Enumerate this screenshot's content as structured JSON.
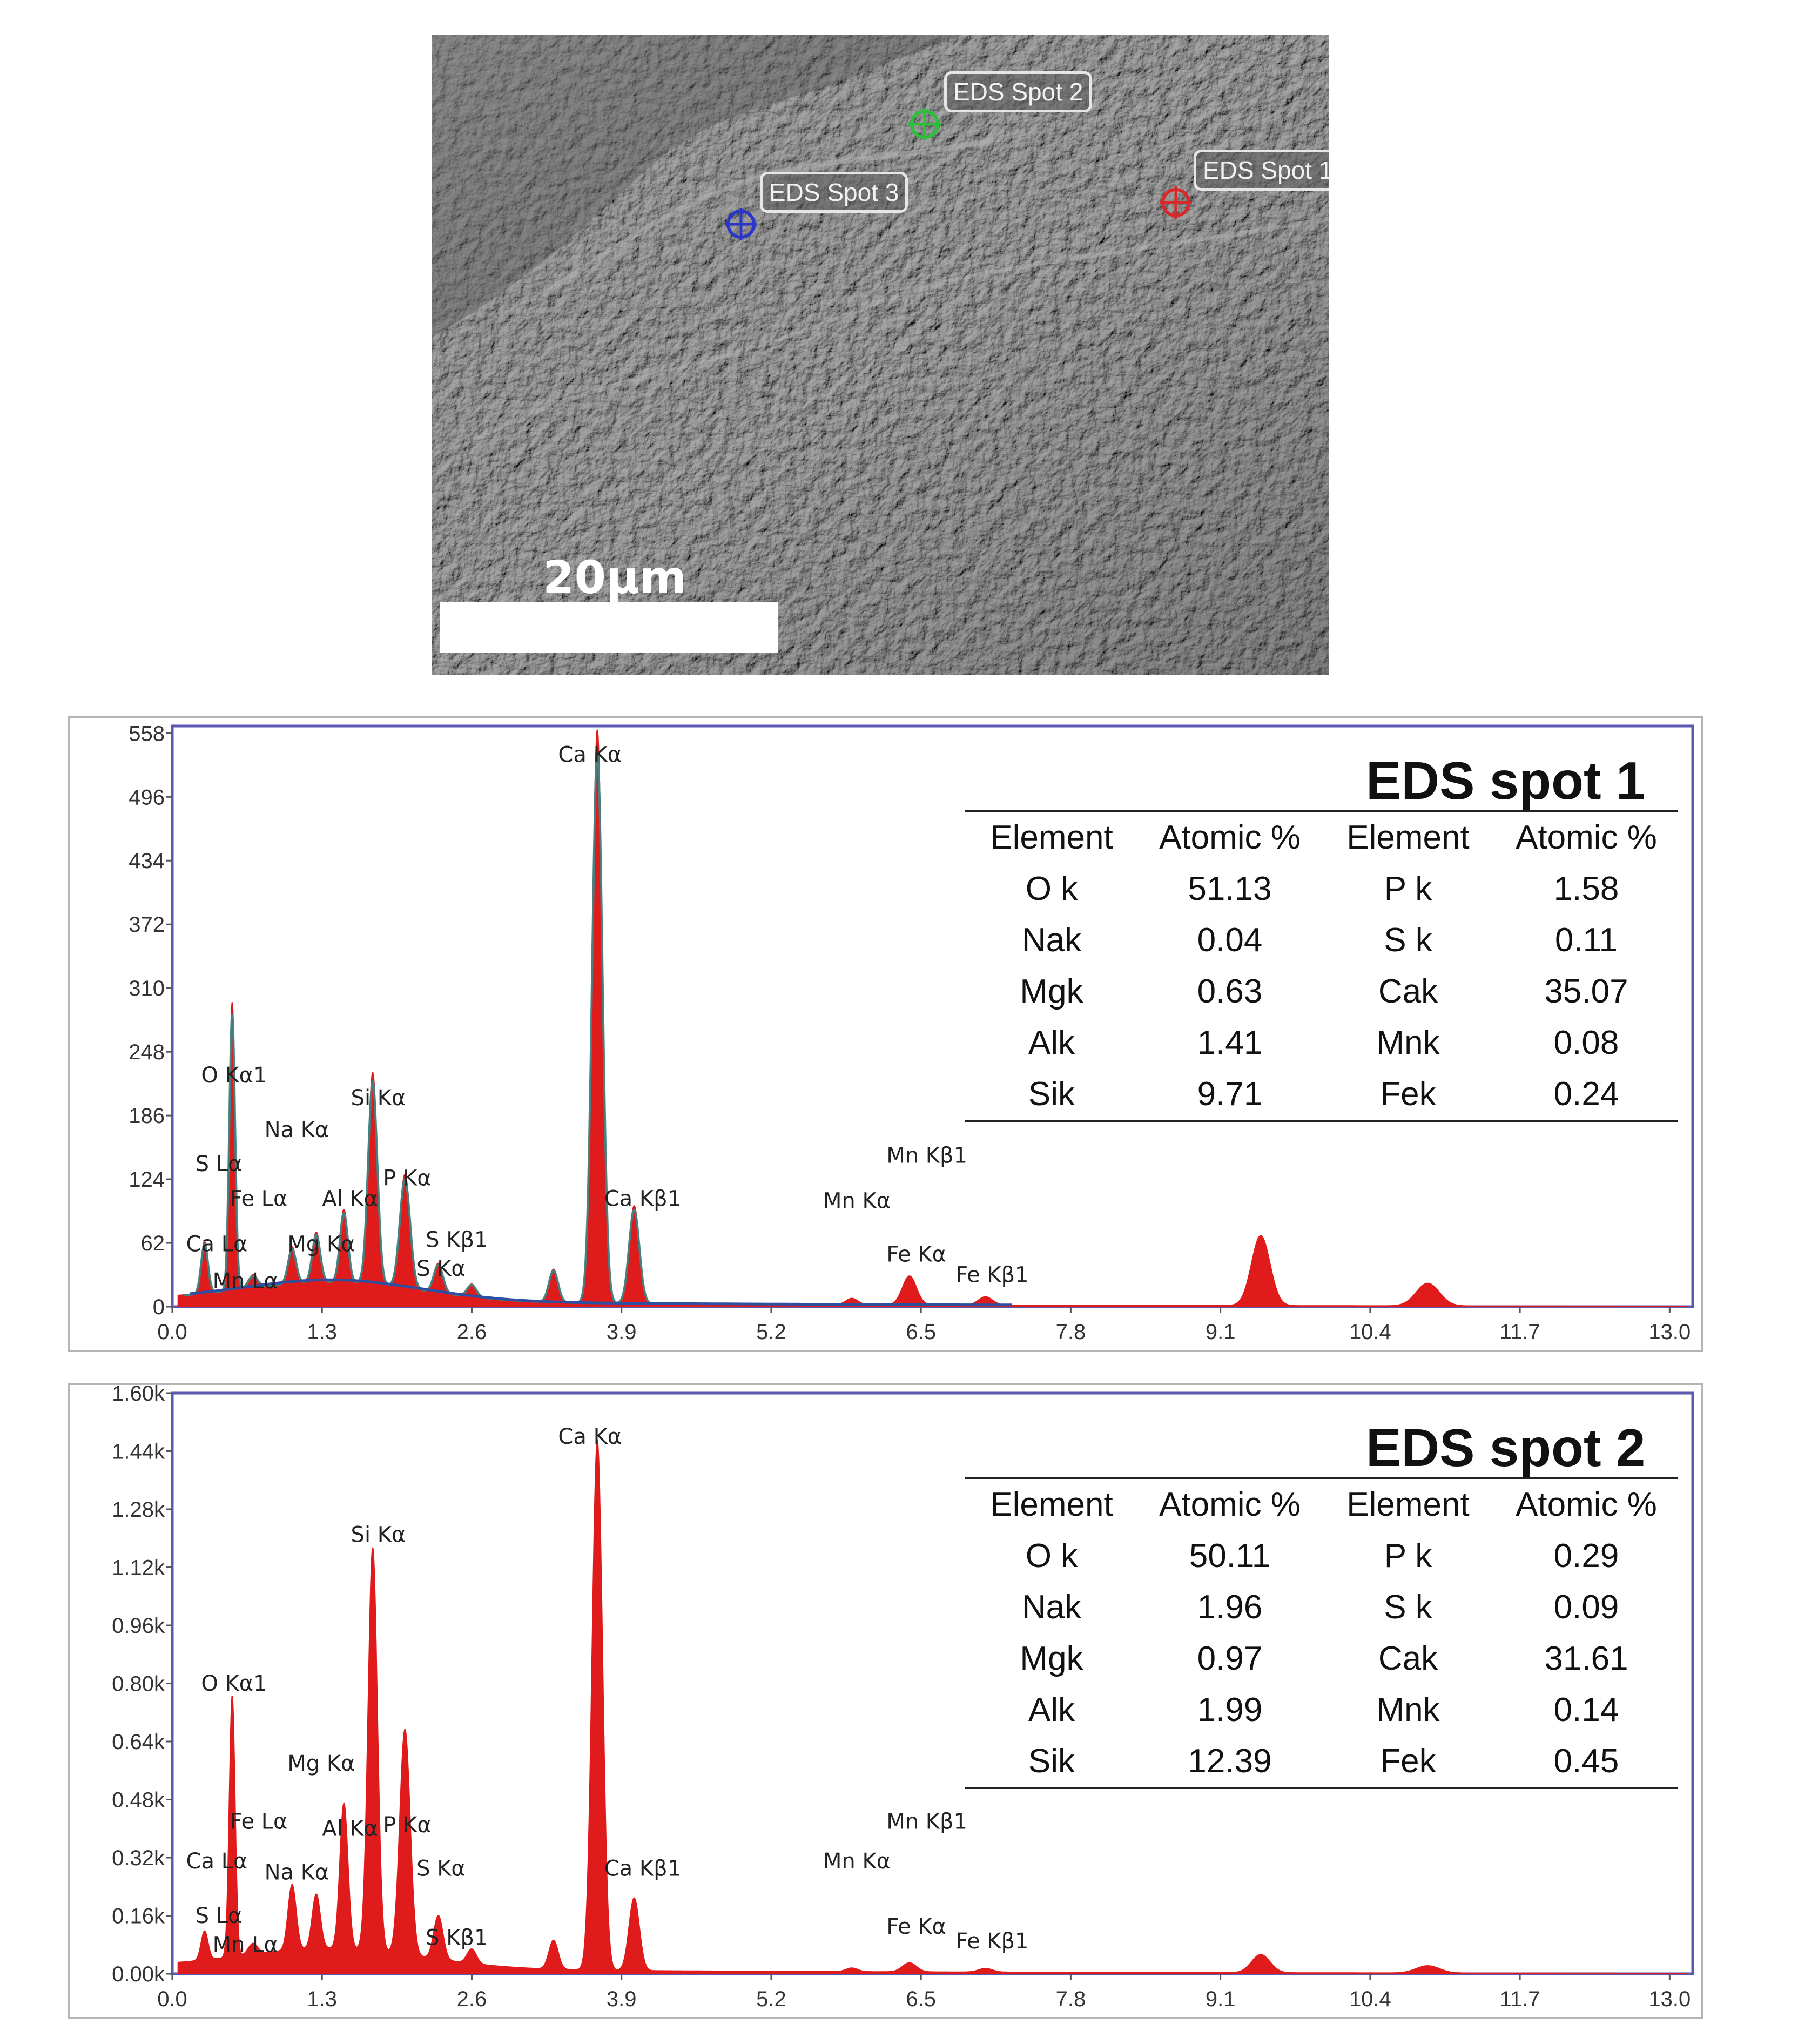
{
  "sem": {
    "scale_label": "20μm",
    "spots": [
      {
        "label": "EDS Spot 1",
        "color": "#d8282a"
      },
      {
        "label": "EDS Spot 2",
        "color": "#2bbf3b"
      },
      {
        "label": "EDS Spot 3",
        "color": "#2a36c8"
      }
    ]
  },
  "chart_data": [
    {
      "type": "area",
      "title": "EDS spot 1",
      "x_ticks": [
        "0.0",
        "1.3",
        "2.6",
        "3.9",
        "5.2",
        "6.5",
        "7.8",
        "9.1",
        "10.4",
        "11.7",
        "13.0"
      ],
      "y_ticks": [
        "0",
        "62",
        "124",
        "186",
        "248",
        "310",
        "372",
        "434",
        "496",
        "558"
      ],
      "xlim": [
        0,
        13.2
      ],
      "ylim": [
        0,
        565
      ],
      "spectrum_color": "#e01b1b",
      "fit_color": "#3a8a8a",
      "background_color": "#2f4ea0",
      "peaks": [
        {
          "x": 0.28,
          "y": 50,
          "w": 0.03
        },
        {
          "x": 0.52,
          "y": 280,
          "w": 0.025
        },
        {
          "x": 0.7,
          "y": 12,
          "w": 0.04
        },
        {
          "x": 1.04,
          "y": 35,
          "w": 0.035
        },
        {
          "x": 1.25,
          "y": 48,
          "w": 0.035
        },
        {
          "x": 1.49,
          "y": 70,
          "w": 0.035
        },
        {
          "x": 1.74,
          "y": 205,
          "w": 0.04
        },
        {
          "x": 2.02,
          "y": 110,
          "w": 0.045
        },
        {
          "x": 2.31,
          "y": 28,
          "w": 0.04
        },
        {
          "x": 2.6,
          "y": 12,
          "w": 0.04
        },
        {
          "x": 3.31,
          "y": 32,
          "w": 0.04
        },
        {
          "x": 3.69,
          "y": 558,
          "w": 0.045
        },
        {
          "x": 4.01,
          "y": 95,
          "w": 0.045
        },
        {
          "x": 5.9,
          "y": 6,
          "w": 0.05
        },
        {
          "x": 6.4,
          "y": 28,
          "w": 0.06
        },
        {
          "x": 7.06,
          "y": 8,
          "w": 0.06
        },
        {
          "x": 9.45,
          "y": 68,
          "w": 0.08
        },
        {
          "x": 10.9,
          "y": 22,
          "w": 0.1
        }
      ],
      "peak_labels": [
        {
          "text": "Ca Kα",
          "x": 3.35,
          "y": 530
        },
        {
          "text": "O  Kα1",
          "x": 0.25,
          "y": 218
        },
        {
          "text": "Si Kα",
          "x": 1.55,
          "y": 196
        },
        {
          "text": "Na Kα",
          "x": 0.8,
          "y": 165
        },
        {
          "text": "S  Lα",
          "x": 0.2,
          "y": 132
        },
        {
          "text": "P  Kα",
          "x": 1.83,
          "y": 118
        },
        {
          "text": "Fe Lα",
          "x": 0.5,
          "y": 98
        },
        {
          "text": "Al Kα",
          "x": 1.3,
          "y": 98
        },
        {
          "text": "Ca Kβ1",
          "x": 3.75,
          "y": 98
        },
        {
          "text": "Mn Kβ1",
          "x": 6.2,
          "y": 140
        },
        {
          "text": "Mn Kα",
          "x": 5.65,
          "y": 96
        },
        {
          "text": "S  Kβ1",
          "x": 2.2,
          "y": 58
        },
        {
          "text": "Ca Lα",
          "x": 0.12,
          "y": 54
        },
        {
          "text": "Mg Kα",
          "x": 1.0,
          "y": 54
        },
        {
          "text": "S  Kα",
          "x": 2.12,
          "y": 30
        },
        {
          "text": "Mn Lα",
          "x": 0.35,
          "y": 18
        },
        {
          "text": "Fe Kα",
          "x": 6.2,
          "y": 44
        },
        {
          "text": "Fe Kβ1",
          "x": 6.8,
          "y": 24
        }
      ],
      "composition": {
        "header": [
          "Element",
          "Atomic %",
          "Element",
          "Atomic %"
        ],
        "rows": [
          [
            "O k",
            "51.13",
            "P k",
            "1.58"
          ],
          [
            "Nak",
            "0.04",
            "S k",
            "0.11"
          ],
          [
            "Mgk",
            "0.63",
            "Cak",
            "35.07"
          ],
          [
            "Alk",
            "1.41",
            "Mnk",
            "0.08"
          ],
          [
            "Sik",
            "9.71",
            "Fek",
            "0.24"
          ]
        ]
      }
    },
    {
      "type": "area",
      "title": "EDS spot 2",
      "x_ticks": [
        "0.0",
        "1.3",
        "2.6",
        "3.9",
        "5.2",
        "6.5",
        "7.8",
        "9.1",
        "10.4",
        "11.7",
        "13.0"
      ],
      "y_ticks": [
        "0.00k",
        "0.16k",
        "0.32k",
        "0.48k",
        "0.64k",
        "0.80k",
        "0.96k",
        "1.12k",
        "1.28k",
        "1.44k",
        "1.60k"
      ],
      "xlim": [
        0,
        13.2
      ],
      "ylim": [
        0,
        1.6
      ],
      "spectrum_color": "#e01b1b",
      "peaks": [
        {
          "x": 0.28,
          "y": 0.08,
          "w": 0.03
        },
        {
          "x": 0.52,
          "y": 0.72,
          "w": 0.025
        },
        {
          "x": 0.7,
          "y": 0.03,
          "w": 0.04
        },
        {
          "x": 1.04,
          "y": 0.18,
          "w": 0.035
        },
        {
          "x": 1.25,
          "y": 0.15,
          "w": 0.035
        },
        {
          "x": 1.49,
          "y": 0.4,
          "w": 0.035
        },
        {
          "x": 1.74,
          "y": 1.11,
          "w": 0.04
        },
        {
          "x": 2.02,
          "y": 0.62,
          "w": 0.045
        },
        {
          "x": 2.31,
          "y": 0.12,
          "w": 0.04
        },
        {
          "x": 2.6,
          "y": 0.04,
          "w": 0.04
        },
        {
          "x": 3.31,
          "y": 0.08,
          "w": 0.04
        },
        {
          "x": 3.69,
          "y": 1.46,
          "w": 0.045
        },
        {
          "x": 4.01,
          "y": 0.2,
          "w": 0.045
        },
        {
          "x": 5.9,
          "y": 0.01,
          "w": 0.05
        },
        {
          "x": 6.4,
          "y": 0.025,
          "w": 0.06
        },
        {
          "x": 7.06,
          "y": 0.01,
          "w": 0.06
        },
        {
          "x": 9.45,
          "y": 0.05,
          "w": 0.08
        },
        {
          "x": 10.9,
          "y": 0.02,
          "w": 0.1
        }
      ],
      "peak_labels": [
        {
          "text": "Ca Kα",
          "x": 3.35,
          "y": 1.46
        },
        {
          "text": "Si Kα",
          "x": 1.55,
          "y": 1.19
        },
        {
          "text": "O  Kα1",
          "x": 0.25,
          "y": 0.78
        },
        {
          "text": "Mg Kα",
          "x": 1.0,
          "y": 0.56
        },
        {
          "text": "Fe Lα",
          "x": 0.5,
          "y": 0.4
        },
        {
          "text": "Al Kα",
          "x": 1.3,
          "y": 0.38
        },
        {
          "text": "P  Kα",
          "x": 1.83,
          "y": 0.39
        },
        {
          "text": "Mn Kβ1",
          "x": 6.2,
          "y": 0.4
        },
        {
          "text": "Ca Lα",
          "x": 0.12,
          "y": 0.29
        },
        {
          "text": "Mn Kα",
          "x": 5.65,
          "y": 0.29
        },
        {
          "text": "S  Kα",
          "x": 2.12,
          "y": 0.27
        },
        {
          "text": "Ca Kβ1",
          "x": 3.75,
          "y": 0.27
        },
        {
          "text": "Na Kα",
          "x": 0.8,
          "y": 0.26
        },
        {
          "text": "S  Lα",
          "x": 0.2,
          "y": 0.14
        },
        {
          "text": "Fe Kα",
          "x": 6.2,
          "y": 0.11
        },
        {
          "text": "S  Kβ1",
          "x": 2.2,
          "y": 0.08
        },
        {
          "text": "Mn Lα",
          "x": 0.35,
          "y": 0.06
        },
        {
          "text": "Fe Kβ1",
          "x": 6.8,
          "y": 0.07
        }
      ],
      "composition": {
        "header": [
          "Element",
          "Atomic %",
          "Element",
          "Atomic %"
        ],
        "rows": [
          [
            "O k",
            "50.11",
            "P k",
            "0.29"
          ],
          [
            "Nak",
            "1.96",
            "S k",
            "0.09"
          ],
          [
            "Mgk",
            "0.97",
            "Cak",
            "31.61"
          ],
          [
            "Alk",
            "1.99",
            "Mnk",
            "0.14"
          ],
          [
            "Sik",
            "12.39",
            "Fek",
            "0.45"
          ]
        ]
      }
    }
  ]
}
